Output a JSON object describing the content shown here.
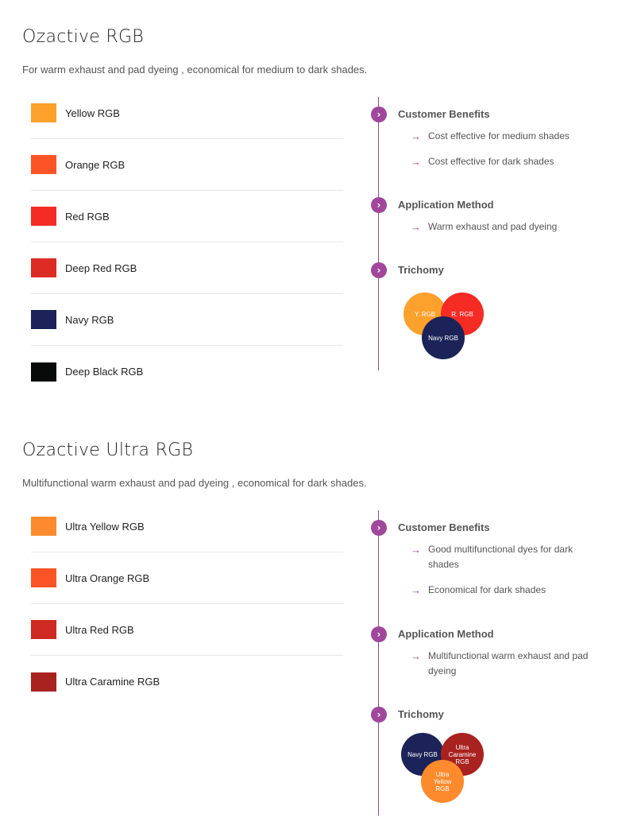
{
  "products": [
    {
      "title": "Ozactive RGB",
      "subtitle": "For warm exhaust and pad dyeing , economical for medium to dark shades.",
      "shades": [
        {
          "name": "Yellow RGB",
          "color": "#fba12c"
        },
        {
          "name": "Orange RGB",
          "color": "#fd5426"
        },
        {
          "name": "Red RGB",
          "color": "#f42c24"
        },
        {
          "name": "Deep Red RGB",
          "color": "#dc2c23"
        },
        {
          "name": "Navy RGB",
          "color": "#1c2358"
        },
        {
          "name": "Deep Black RGB",
          "color": "#070a09"
        }
      ],
      "timeline": {
        "benefits_heading": "Customer Benefits",
        "benefits": [
          "Cost effective for medium shades",
          "Cost effective for dark shades"
        ],
        "method_heading": "Application Method",
        "methods": [
          "Warm exhaust and pad dyeing"
        ],
        "trichomy_heading": "Trichomy",
        "trichomy": [
          {
            "label": "Y. RGB",
            "color": "#fba12c"
          },
          {
            "label": "R. RGB",
            "color": "#f42c24"
          },
          {
            "label": "Navy RGB",
            "color": "#1c2358"
          }
        ]
      }
    },
    {
      "title": "Ozactive Ultra RGB",
      "subtitle": "Multifunctional warm exhaust and pad dyeing , economical for dark shades.",
      "shades": [
        {
          "name": "Ultra Yellow RGB",
          "color": "#fd8a2c"
        },
        {
          "name": "Ultra Orange RGB",
          "color": "#fd5426"
        },
        {
          "name": "Ultra Red RGB",
          "color": "#cf2a21"
        },
        {
          "name": "Ultra Caramine RGB",
          "color": "#a8221f"
        }
      ],
      "timeline": {
        "benefits_heading": "Customer Benefits",
        "benefits": [
          "Good multifunctional dyes for dark shades",
          "Economical for dark shades"
        ],
        "method_heading": "Application Method",
        "methods": [
          "Multifunctional warm exhaust and pad dyeing"
        ],
        "trichomy_heading": "Trichomy",
        "trichomy": [
          {
            "label": "Navy RGB",
            "color": "#1c2358"
          },
          {
            "label": "Ultra Caramine RGB",
            "color": "#a8221f"
          },
          {
            "label": "Ultra Yellow RGB",
            "color": "#fd8a2c"
          }
        ]
      }
    }
  ],
  "icons": {
    "bullet": "chevron-right-icon",
    "list_arrow": "arrow-right-icon"
  }
}
